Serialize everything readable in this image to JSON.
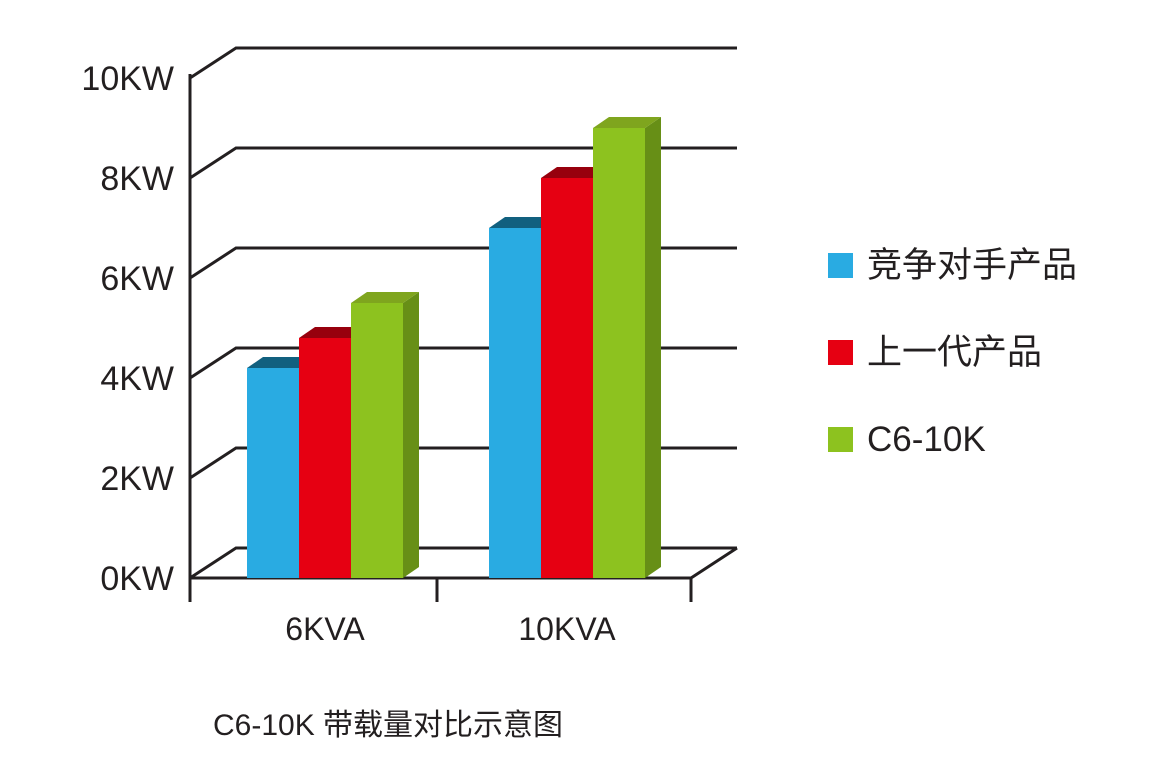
{
  "chart_data": {
    "type": "bar",
    "style": "3d",
    "title": "C6-10K 带载量对比示意图",
    "categories": [
      "6KVA",
      "10KVA"
    ],
    "series": [
      {
        "name": "竞争对手产品",
        "color": "#29ABE2",
        "color_top": "#11607F",
        "color_side": "#1878A3",
        "values": [
          4.2,
          7.0
        ]
      },
      {
        "name": "上一代产品",
        "color": "#E60012",
        "color_top": "#97000D",
        "color_side": "#B5000F",
        "values": [
          4.8,
          8.0
        ]
      },
      {
        "name": "C6-10K",
        "color": "#8DC21F",
        "color_top": "#7FA51E",
        "color_side": "#678F16",
        "values": [
          5.5,
          9.0
        ]
      }
    ],
    "y_axis": {
      "min": 0,
      "max": 10,
      "step": 2,
      "unit": "KW",
      "tick_labels": [
        "0KW",
        "2KW",
        "4KW",
        "6KW",
        "8KW",
        "10KW"
      ]
    },
    "x_axis": {
      "tick_labels": [
        "6KVA",
        "10KVA"
      ]
    },
    "legend_position": "right",
    "grid": true
  },
  "colors": {
    "text": "#231F20",
    "axis": "#231F20",
    "background": "#FFFFFF"
  }
}
